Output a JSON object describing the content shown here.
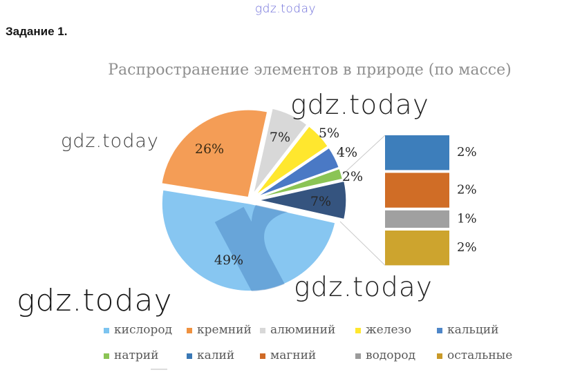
{
  "page": {
    "task_label": "Задание 1."
  },
  "watermarks": {
    "top": "gdz.today",
    "left": "gdz.today",
    "upper_right": "gdz.today",
    "lower_right": "gdz.today",
    "bottom_left": "gdz.today"
  },
  "chart_data": {
    "type": "pie",
    "variant": "pie-of-pie",
    "title": "Распространение элементов в природе (по массе)",
    "unit": "%",
    "categories": [
      "кислород",
      "кремний",
      "алюминий",
      "железо",
      "кальций",
      "натрий",
      "калий",
      "магний",
      "водород",
      "остальные"
    ],
    "values": [
      49,
      26,
      7,
      5,
      4,
      2,
      2,
      2,
      1,
      2
    ],
    "pie_start_deg": 12.6,
    "legend_position": "bottom",
    "primary_slices": [
      {
        "name": "алюминий",
        "value": 7,
        "text": "7%",
        "color": "#D8D8D8",
        "explode": 10,
        "label_at": [
          405,
          200
        ]
      },
      {
        "name": "железо",
        "value": 5,
        "text": "5%",
        "color": "#FFE72E",
        "explode": 10,
        "label_at": [
          476,
          194
        ],
        "outside": true
      },
      {
        "name": "кальций",
        "value": 4,
        "text": "4%",
        "color": "#4A79C5",
        "explode": 10,
        "label_at": [
          502,
          222
        ],
        "outside": true
      },
      {
        "name": "натрий",
        "value": 2,
        "text": "2%",
        "color": "#8BC455",
        "explode": 10,
        "label_at": [
          510,
          257
        ],
        "outside": true
      },
      {
        "name": "combined",
        "value": 7,
        "text": "7%",
        "color": "#35547F",
        "explode": 12,
        "label_at": [
          464,
          293
        ],
        "combined": true
      },
      {
        "name": "кислород",
        "value": 49,
        "text": "49%",
        "color": "#87C6F1",
        "explode": 5,
        "label_at": [
          331,
          378
        ],
        "watermark_r": true
      },
      {
        "name": "кремний",
        "value": 26,
        "text": "26%",
        "color": "#F49D56",
        "explode": 5,
        "label_at": [
          303,
          217
        ],
        "label_color": "#3A2B14"
      }
    ],
    "secondary_segments": [
      {
        "name": "калий",
        "value": 2,
        "text": "2%",
        "color": "#3D7EBB"
      },
      {
        "name": "магний",
        "value": 2,
        "text": "2%",
        "color": "#D06D26"
      },
      {
        "name": "водород",
        "value": 1,
        "text": "1%",
        "color": "#A0A0A0"
      },
      {
        "name": "остальные",
        "value": 2,
        "text": "2%",
        "color": "#CDA42E"
      }
    ],
    "legend": [
      {
        "label": "кислород",
        "color": "#7CC4F0"
      },
      {
        "label": "кремний",
        "color": "#EF913F"
      },
      {
        "label": "алюминий",
        "color": "#D8D8D8"
      },
      {
        "label": "железо",
        "color": "#FFE72E"
      },
      {
        "label": "кальций",
        "color": "#4E86C8"
      },
      {
        "label": "натрий",
        "color": "#8BC455"
      },
      {
        "label": "калий",
        "color": "#3A78B5"
      },
      {
        "label": "магний",
        "color": "#CF6A26"
      },
      {
        "label": "водород",
        "color": "#9B9B9B"
      },
      {
        "label": "остальные",
        "color": "#C99A28"
      }
    ]
  }
}
